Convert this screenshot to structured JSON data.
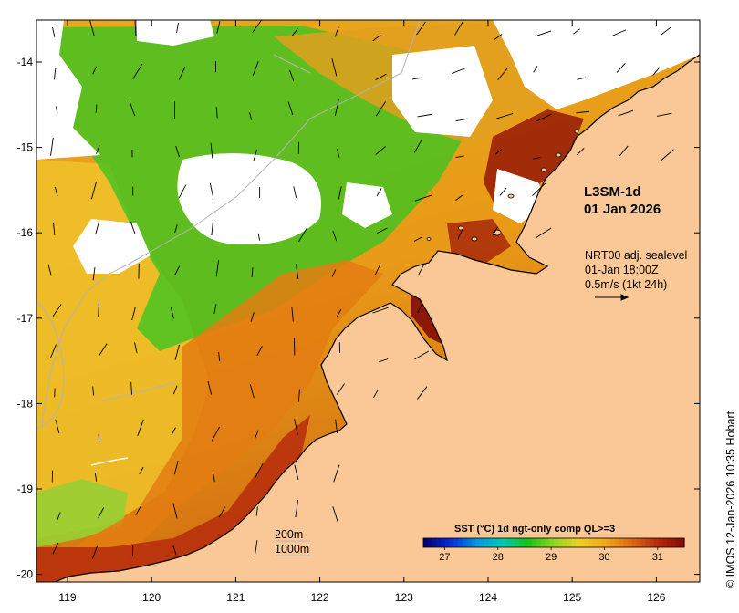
{
  "map": {
    "product": "L3SM-1d",
    "date": "01 Jan 2026",
    "current_info": [
      "NRT00 adj. sealevel",
      "01-Jan 18:00Z",
      "0.5m/s (1kt 24h)"
    ],
    "depth_contours": [
      "200m",
      "1000m"
    ],
    "credit": "© IMOS 12-Jan-2026 10:35 Hobart",
    "lon_ticks": [
      "119",
      "120",
      "121",
      "122",
      "123",
      "124",
      "125",
      "126"
    ],
    "lat_ticks": [
      "-14",
      "-15",
      "-16",
      "-17",
      "-18",
      "-19",
      "-20"
    ]
  },
  "colorbar": {
    "title": "SST (°C) 1d ngt-only comp QL>=3",
    "ticks": [
      "27",
      "28",
      "29",
      "30",
      "31"
    ],
    "min": 26.6,
    "max": 31.5,
    "colors": [
      "#00007a",
      "#0030d8",
      "#0096e0",
      "#00c8b4",
      "#18c010",
      "#8cd820",
      "#f0d020",
      "#f0a818",
      "#e06a0c",
      "#b82c0c",
      "#8c0a06"
    ]
  },
  "colors": {
    "land": "#fac896",
    "cloud": "#ffffff",
    "coast": "#000000",
    "bathymetry": "#b4b4b4"
  }
}
